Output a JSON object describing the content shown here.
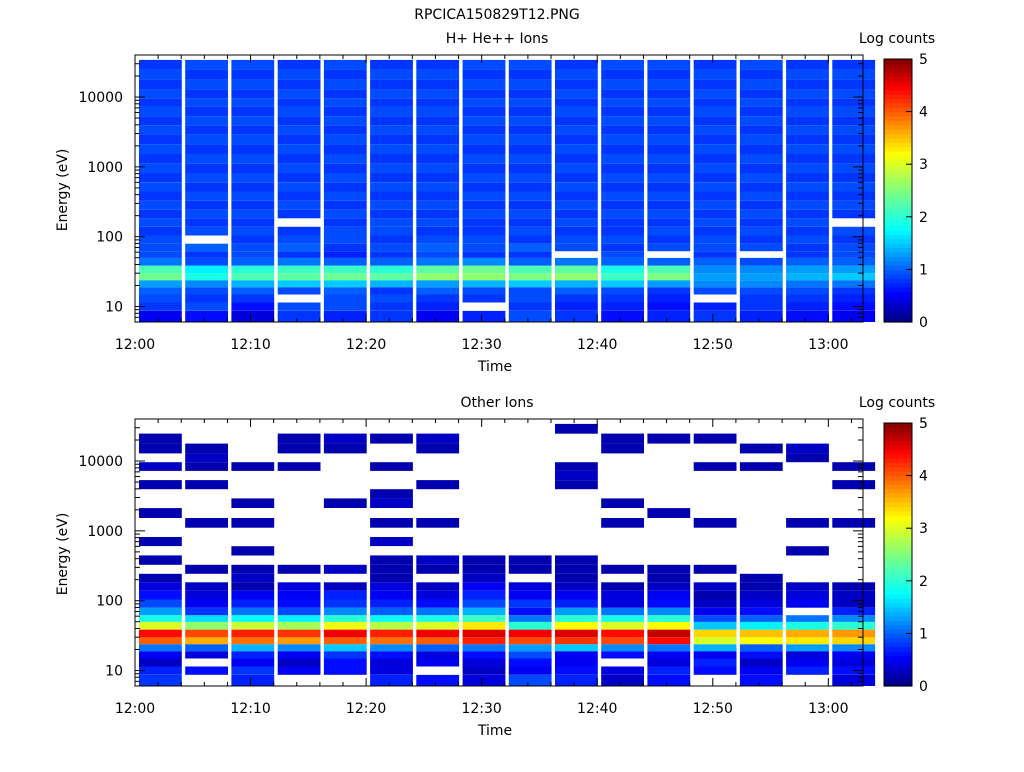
{
  "figure_title": "RPCICA150829T12.PNG",
  "chart_data": [
    {
      "type": "heatmap",
      "title": "H+ He++ Ions",
      "xlabel": "Time",
      "ylabel": "Energy (eV)",
      "x_ticks": [
        "12:00",
        "12:10",
        "12:20",
        "12:30",
        "12:40",
        "12:50",
        "13:00"
      ],
      "x_range": [
        "12:00",
        "13:03"
      ],
      "y_scale": "log",
      "y_ticks": [
        "10",
        "100",
        "1000",
        "10000"
      ],
      "y_range": [
        6,
        40000
      ],
      "colorbar": {
        "label": "Log counts",
        "ticks": [
          "0",
          "1",
          "2",
          "3",
          "4",
          "5"
        ],
        "range": [
          0,
          5
        ]
      },
      "time_bins": [
        "12:00",
        "12:04",
        "12:08",
        "12:12",
        "12:16",
        "12:20",
        "12:24",
        "12:28",
        "12:32",
        "12:36",
        "12:40",
        "12:44",
        "12:48",
        "12:52",
        "12:56",
        "13:00"
      ],
      "energy_bins_eV": [
        7.5,
        10,
        13,
        17,
        21,
        27,
        33,
        45,
        55,
        70,
        90,
        120,
        160,
        210,
        280,
        380,
        520,
        700,
        950,
        1300,
        1800,
        2500,
        3400,
        4600,
        6200,
        8400,
        11000,
        15000,
        21000,
        29000,
        40000
      ],
      "log_counts": [
        [
          0.5,
          0.6,
          0.4,
          0.8,
          0.7,
          0.8,
          0.5,
          0.7,
          0.9,
          0.8,
          0.6,
          0.7,
          0.8,
          0.7,
          0.6,
          0.5
        ],
        [
          0.8,
          0.9,
          0.6,
          0.9,
          0.9,
          0.8,
          0.7,
          null,
          0.8,
          0.7,
          0.7,
          0.6,
          0.7,
          0.8,
          0.7,
          0.6
        ],
        [
          0.9,
          0.8,
          0.8,
          null,
          0.9,
          0.9,
          0.8,
          0.8,
          0.9,
          0.8,
          0.8,
          0.7,
          null,
          0.8,
          0.8,
          0.7
        ],
        [
          1.0,
          0.9,
          1.0,
          0.9,
          1.0,
          0.8,
          1.0,
          0.9,
          0.9,
          1.0,
          0.9,
          0.8,
          0.9,
          0.9,
          0.9,
          0.8
        ],
        [
          1.3,
          1.2,
          1.4,
          1.5,
          1.5,
          1.4,
          1.3,
          1.4,
          1.5,
          1.4,
          1.5,
          1.3,
          1.2,
          1.2,
          1.1,
          1.1
        ],
        [
          2.4,
          1.9,
          2.2,
          2.3,
          2.4,
          2.3,
          2.6,
          2.6,
          2.5,
          2.6,
          2.1,
          2.5,
          1.3,
          1.3,
          1.4,
          1.5
        ],
        [
          2.2,
          1.7,
          2.0,
          2.1,
          2.1,
          2.0,
          2.3,
          2.4,
          2.2,
          2.3,
          1.9,
          2.2,
          1.2,
          1.2,
          1.3,
          1.3
        ],
        [
          1.1,
          0.9,
          1.0,
          1.1,
          1.0,
          1.0,
          1.1,
          1.2,
          1.0,
          1.1,
          1.0,
          1.0,
          1.0,
          0.9,
          1.0,
          1.0
        ],
        [
          0.9,
          0.8,
          0.9,
          0.8,
          0.7,
          0.8,
          0.9,
          0.8,
          0.8,
          null,
          0.9,
          null,
          0.8,
          null,
          0.8,
          0.9
        ],
        [
          0.9,
          1.0,
          0.9,
          1.0,
          0.8,
          0.9,
          1.0,
          0.9,
          1.0,
          0.9,
          0.8,
          0.9,
          0.9,
          0.9,
          0.8,
          0.9
        ],
        [
          0.9,
          null,
          0.8,
          0.9,
          0.9,
          0.8,
          0.9,
          0.9,
          0.8,
          0.9,
          0.9,
          0.8,
          0.9,
          0.8,
          0.9,
          0.8
        ],
        [
          0.8,
          0.9,
          0.9,
          0.8,
          0.9,
          0.9,
          0.8,
          0.8,
          0.9,
          0.8,
          0.8,
          0.9,
          0.8,
          0.9,
          0.8,
          0.9
        ],
        [
          0.9,
          0.8,
          0.8,
          null,
          0.8,
          0.9,
          0.9,
          0.8,
          0.8,
          0.9,
          0.8,
          0.8,
          0.9,
          0.8,
          0.9,
          null
        ],
        [
          0.8,
          0.9,
          0.9,
          0.8,
          0.9,
          0.8,
          0.8,
          0.9,
          0.9,
          0.8,
          0.9,
          0.9,
          0.8,
          0.9,
          0.8,
          0.8
        ],
        [
          0.9,
          0.8,
          0.8,
          0.9,
          0.8,
          0.9,
          0.9,
          0.8,
          0.8,
          0.9,
          0.8,
          0.8,
          0.9,
          0.8,
          0.9,
          0.9
        ],
        [
          0.8,
          0.9,
          0.9,
          0.8,
          0.9,
          0.8,
          0.8,
          0.9,
          0.9,
          0.8,
          0.9,
          0.9,
          0.8,
          0.9,
          0.8,
          0.8
        ],
        [
          0.9,
          0.8,
          0.8,
          0.9,
          0.8,
          0.9,
          0.9,
          0.8,
          0.8,
          0.9,
          0.8,
          0.8,
          0.9,
          0.8,
          0.9,
          0.9
        ],
        [
          0.8,
          0.9,
          0.9,
          0.8,
          0.9,
          0.8,
          0.8,
          0.9,
          0.9,
          0.8,
          0.9,
          0.9,
          0.8,
          0.9,
          0.8,
          0.8
        ],
        [
          0.9,
          0.8,
          0.8,
          0.9,
          0.8,
          0.9,
          0.9,
          0.8,
          0.8,
          0.9,
          0.8,
          0.8,
          0.9,
          0.8,
          0.9,
          0.9
        ],
        [
          0.8,
          0.9,
          0.9,
          0.8,
          0.9,
          0.8,
          0.8,
          0.9,
          0.9,
          0.8,
          0.9,
          0.9,
          0.8,
          0.9,
          0.8,
          0.8
        ],
        [
          0.9,
          0.8,
          0.8,
          0.9,
          0.8,
          0.9,
          0.9,
          0.8,
          0.8,
          0.9,
          0.8,
          0.8,
          0.9,
          0.8,
          0.9,
          0.9
        ],
        [
          0.8,
          0.9,
          0.9,
          0.8,
          0.9,
          0.8,
          0.8,
          0.9,
          0.9,
          0.8,
          0.9,
          0.9,
          0.8,
          0.9,
          0.8,
          0.8
        ],
        [
          0.9,
          0.8,
          0.8,
          0.9,
          0.8,
          0.9,
          0.9,
          0.8,
          0.8,
          0.9,
          0.8,
          0.8,
          0.9,
          0.8,
          0.9,
          0.9
        ],
        [
          0.8,
          0.9,
          0.9,
          0.8,
          0.9,
          0.8,
          0.8,
          0.9,
          0.9,
          0.8,
          0.9,
          0.9,
          0.8,
          0.9,
          0.8,
          0.8
        ],
        [
          0.9,
          0.8,
          0.8,
          0.9,
          0.8,
          0.9,
          0.9,
          0.8,
          0.8,
          0.9,
          0.8,
          0.8,
          0.9,
          0.8,
          0.9,
          0.9
        ],
        [
          0.8,
          0.9,
          0.9,
          0.8,
          0.9,
          0.8,
          0.8,
          0.9,
          0.9,
          0.8,
          0.9,
          0.9,
          0.8,
          0.9,
          0.8,
          0.8
        ],
        [
          0.9,
          0.8,
          0.8,
          0.9,
          0.8,
          0.9,
          0.9,
          0.8,
          0.8,
          0.9,
          0.8,
          0.8,
          0.9,
          0.8,
          0.9,
          0.9
        ],
        [
          0.8,
          0.9,
          0.9,
          0.8,
          0.9,
          0.8,
          0.8,
          0.9,
          0.9,
          0.8,
          0.9,
          0.9,
          0.8,
          0.9,
          0.8,
          0.8
        ],
        [
          0.9,
          0.8,
          0.8,
          0.9,
          0.8,
          0.9,
          0.9,
          0.8,
          0.8,
          0.9,
          0.8,
          0.8,
          0.9,
          0.8,
          0.9,
          0.9
        ],
        [
          0.8,
          0.9,
          0.9,
          0.8,
          0.9,
          0.8,
          0.8,
          0.9,
          0.9,
          0.8,
          0.9,
          0.9,
          0.8,
          0.9,
          0.8,
          0.8
        ]
      ]
    },
    {
      "type": "heatmap",
      "title": "Other Ions",
      "xlabel": "Time",
      "ylabel": "Energy (eV)",
      "x_ticks": [
        "12:00",
        "12:10",
        "12:20",
        "12:30",
        "12:40",
        "12:50",
        "13:00"
      ],
      "x_range": [
        "12:00",
        "13:03"
      ],
      "y_scale": "log",
      "y_ticks": [
        "10",
        "100",
        "1000",
        "10000"
      ],
      "y_range": [
        6,
        40000
      ],
      "colorbar": {
        "label": "Log counts",
        "ticks": [
          "0",
          "1",
          "2",
          "3",
          "4",
          "5"
        ],
        "range": [
          0,
          5
        ]
      },
      "time_bins": [
        "12:00",
        "12:04",
        "12:08",
        "12:12",
        "12:16",
        "12:20",
        "12:24",
        "12:28",
        "12:32",
        "12:36",
        "12:40",
        "12:44",
        "12:48",
        "12:52",
        "12:56",
        "13:00"
      ],
      "energy_bins_eV": [
        7.5,
        10,
        13,
        17,
        21,
        27,
        33,
        45,
        55,
        70,
        90,
        120,
        160,
        210,
        280,
        380,
        520,
        700,
        950,
        1300,
        1800,
        2500,
        3400,
        4600,
        6200,
        8400,
        11000,
        15000,
        21000,
        29000,
        40000
      ],
      "log_counts": [
        [
          0.8,
          null,
          0.7,
          null,
          null,
          0.7,
          0.6,
          0.4,
          0.9,
          0.7,
          0.3,
          0.6,
          null,
          0.6,
          null,
          0.4
        ],
        [
          0.7,
          0.6,
          0.8,
          0.5,
          0.6,
          0.4,
          null,
          0.3,
          0.5,
          0.6,
          0.4,
          0.7,
          0.6,
          0.5,
          0.7,
          0.6
        ],
        [
          0.3,
          null,
          0.5,
          0.3,
          0.6,
          0.4,
          0.5,
          0.4,
          0.6,
          0.5,
          null,
          0.4,
          0.7,
          0.3,
          0.5,
          0.4
        ],
        [
          0.5,
          0.4,
          0.7,
          0.5,
          0.8,
          0.6,
          0.4,
          0.6,
          0.9,
          0.5,
          0.6,
          0.5,
          0.5,
          0.6,
          0.4,
          0.5
        ],
        [
          1.1,
          1.0,
          1.4,
          1.2,
          1.5,
          1.2,
          1.0,
          1.1,
          1.3,
          1.5,
          1.2,
          1.1,
          1.4,
          1.0,
          1.3,
          1.2
        ],
        [
          4.0,
          3.6,
          3.9,
          3.7,
          4.0,
          3.9,
          4.0,
          4.3,
          4.1,
          4.2,
          4.1,
          4.4,
          3.0,
          3.2,
          3.3,
          3.4
        ],
        [
          4.4,
          4.1,
          4.3,
          4.2,
          4.5,
          4.3,
          4.5,
          4.6,
          4.5,
          4.6,
          4.4,
          4.7,
          3.4,
          3.5,
          3.6,
          3.7
        ],
        [
          3.0,
          2.6,
          2.9,
          2.7,
          3.1,
          2.8,
          3.0,
          3.3,
          2.0,
          3.2,
          3.0,
          3.2,
          1.5,
          1.7,
          1.9,
          2.0
        ],
        [
          1.9,
          1.6,
          1.8,
          1.7,
          2.0,
          1.8,
          1.9,
          2.1,
          1.1,
          2.0,
          1.9,
          2.0,
          0.9,
          1.0,
          1.1,
          1.2
        ],
        [
          1.3,
          0.8,
          1.1,
          0.9,
          1.2,
          1.0,
          1.1,
          1.4,
          0.6,
          1.3,
          1.1,
          1.2,
          0.5,
          0.6,
          null,
          0.7
        ],
        [
          0.9,
          0.5,
          0.7,
          0.6,
          0.8,
          0.7,
          0.6,
          0.9,
          0.8,
          0.7,
          0.4,
          0.6,
          0.3,
          0.4,
          0.5,
          0.3
        ],
        [
          0.6,
          0.4,
          0.5,
          0.5,
          0.7,
          0.5,
          0.4,
          0.7,
          0.5,
          0.5,
          0.4,
          0.5,
          0.2,
          0.3,
          0.4,
          0.3
        ],
        [
          0.4,
          0.3,
          0.2,
          0.4,
          0.3,
          0.4,
          0.3,
          0.5,
          0.4,
          0.3,
          0.2,
          0.3,
          0.3,
          0.2,
          0.3,
          0.2
        ],
        [
          0.2,
          null,
          0.3,
          null,
          null,
          0.2,
          null,
          0.3,
          null,
          0.2,
          null,
          0.2,
          null,
          0.2,
          null,
          null
        ],
        [
          null,
          0.2,
          0.2,
          0.2,
          0.3,
          0.2,
          0.2,
          0.2,
          0.2,
          0.2,
          0.2,
          0.2,
          0.2,
          null,
          null,
          null
        ],
        [
          0.2,
          null,
          null,
          null,
          null,
          0.2,
          0.3,
          0.2,
          0.2,
          0.2,
          null,
          null,
          null,
          null,
          null,
          null
        ],
        [
          null,
          null,
          0.2,
          null,
          null,
          null,
          null,
          null,
          null,
          null,
          null,
          null,
          null,
          null,
          0.2,
          null
        ],
        [
          0.2,
          null,
          null,
          null,
          null,
          0.3,
          null,
          null,
          null,
          null,
          null,
          null,
          null,
          null,
          null,
          null
        ],
        [
          null,
          null,
          null,
          null,
          null,
          null,
          null,
          null,
          null,
          null,
          null,
          null,
          null,
          null,
          null,
          null
        ],
        [
          null,
          0.2,
          0.2,
          null,
          null,
          0.2,
          0.2,
          null,
          null,
          null,
          0.2,
          null,
          0.2,
          null,
          0.2,
          0.2
        ],
        [
          0.2,
          null,
          null,
          null,
          null,
          null,
          null,
          null,
          null,
          null,
          null,
          0.2,
          null,
          null,
          null,
          null
        ],
        [
          null,
          null,
          0.2,
          null,
          0.2,
          0.3,
          null,
          null,
          null,
          null,
          0.2,
          null,
          null,
          null,
          null,
          null
        ],
        [
          null,
          null,
          null,
          null,
          null,
          0.2,
          null,
          null,
          null,
          null,
          null,
          null,
          null,
          null,
          null,
          null
        ],
        [
          0.2,
          0.2,
          null,
          null,
          null,
          null,
          0.2,
          null,
          null,
          0.2,
          null,
          null,
          null,
          null,
          null,
          0.2
        ],
        [
          null,
          null,
          null,
          null,
          null,
          null,
          null,
          null,
          null,
          0.3,
          null,
          null,
          null,
          null,
          null,
          null
        ],
        [
          0.3,
          0.2,
          0.2,
          0.2,
          null,
          0.2,
          null,
          null,
          null,
          0.2,
          null,
          null,
          0.2,
          0.2,
          null,
          0.2
        ],
        [
          null,
          0.3,
          null,
          null,
          null,
          null,
          null,
          null,
          null,
          null,
          null,
          null,
          null,
          null,
          0.2,
          null
        ],
        [
          0.2,
          0.2,
          null,
          0.2,
          0.2,
          null,
          0.2,
          null,
          null,
          null,
          0.2,
          null,
          null,
          0.2,
          0.3,
          null
        ],
        [
          0.2,
          null,
          null,
          0.2,
          0.3,
          0.2,
          0.3,
          null,
          null,
          null,
          0.2,
          0.2,
          0.2,
          null,
          null,
          null
        ],
        [
          null,
          null,
          null,
          null,
          null,
          null,
          null,
          null,
          null,
          0.2,
          null,
          null,
          null,
          null,
          null,
          null
        ]
      ]
    }
  ]
}
